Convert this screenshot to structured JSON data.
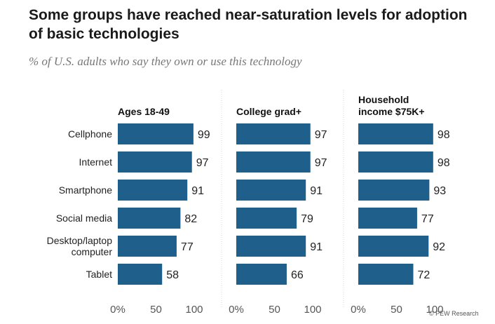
{
  "header": {
    "title": "Some groups have reached near-saturation levels for adoption of basic technologies",
    "subtitle": "% of U.S. adults who say they own or use this technology"
  },
  "credit": "© PEW Research",
  "colors": {
    "bar": "#1f5f8b",
    "divider": "#d8d8d8",
    "tick": "#555555",
    "label": "#222222"
  },
  "chart_data": {
    "type": "bar",
    "orientation": "horizontal",
    "categories": [
      "Cellphone",
      "Internet",
      "Smartphone",
      "Social media",
      "Desktop/laptop computer",
      "Tablet"
    ],
    "category_lines": [
      [
        "Cellphone"
      ],
      [
        "Internet"
      ],
      [
        "Smartphone"
      ],
      [
        "Social media"
      ],
      [
        "Desktop/laptop",
        "computer"
      ],
      [
        "Tablet"
      ]
    ],
    "xlim": [
      0,
      100
    ],
    "ticks": [
      "0%",
      "50",
      "100"
    ],
    "panels": [
      {
        "title": [
          "Ages 18-49"
        ],
        "values": [
          99,
          97,
          91,
          82,
          77,
          58
        ]
      },
      {
        "title": [
          "College grad+"
        ],
        "values": [
          97,
          97,
          91,
          79,
          91,
          66
        ]
      },
      {
        "title": [
          "Household",
          "income $75K+"
        ],
        "values": [
          98,
          98,
          93,
          77,
          92,
          72
        ]
      }
    ]
  }
}
